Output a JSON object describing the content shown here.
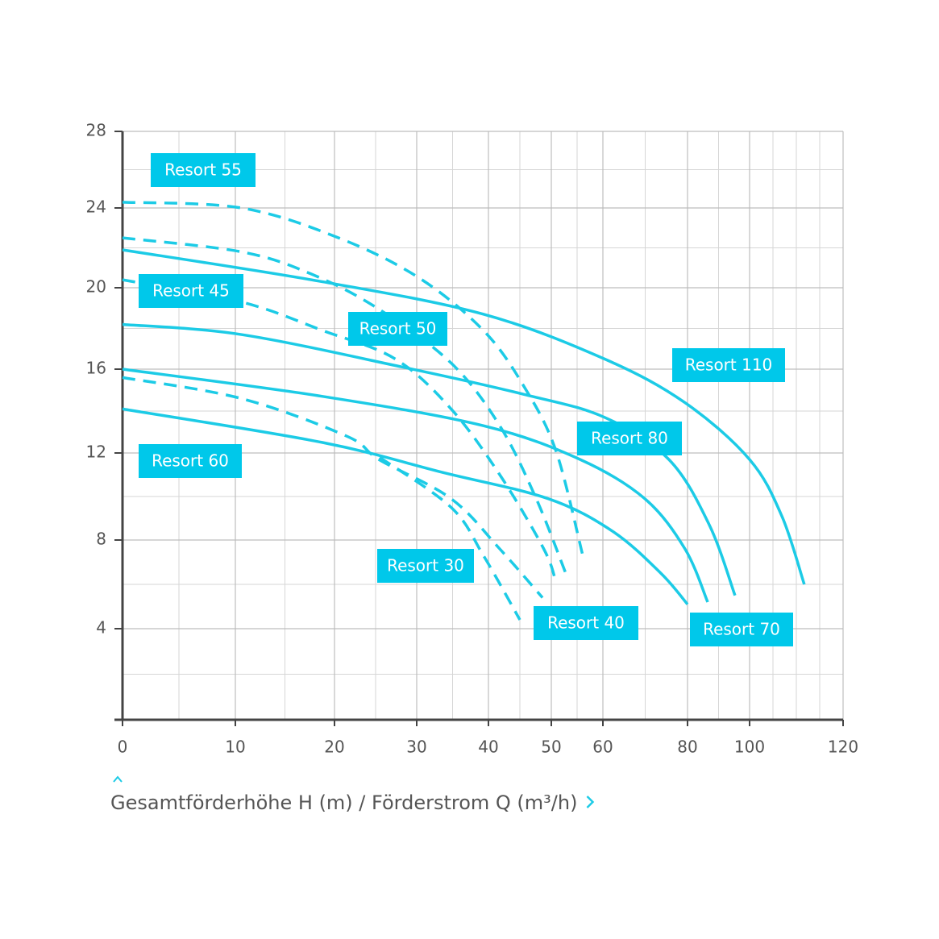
{
  "chart_data": {
    "type": "line",
    "x_axis_label": "Gesamtförderhöhe H (m) / Förderstrom Q (m³/h)",
    "xlim": [
      0,
      120
    ],
    "xticks": [
      0,
      10,
      20,
      30,
      40,
      50,
      60,
      80,
      100,
      120
    ],
    "xminor": [
      5,
      15,
      25,
      35,
      45,
      55,
      70,
      90,
      105,
      110,
      115
    ],
    "ylim": [
      0,
      28
    ],
    "yticks": [
      4,
      8,
      12,
      16,
      20,
      24,
      28
    ],
    "yminor": [
      2,
      6,
      10,
      14,
      18,
      22,
      26
    ],
    "grid": true,
    "series": [
      {
        "name": "Resort 55",
        "color": "#1ccbe6",
        "dashed": true,
        "x": [
          0,
          10.6,
          20.5,
          30.3,
          39.3,
          45.6,
          50.9,
          56.1
        ],
        "values": [
          24.3,
          24,
          22.5,
          20.5,
          17.9,
          15.2,
          12.1,
          7.3
        ]
      },
      {
        "name": "Resort 50",
        "color": "#1ccbe6",
        "dashed": true,
        "x": [
          0,
          10.6,
          17.6,
          25.2,
          34.8,
          41.8,
          47.6,
          52.8
        ],
        "values": [
          22.5,
          21.8,
          20.7,
          19.0,
          16.3,
          13.3,
          9.9,
          6.5
        ]
      },
      {
        "name": "Resort 110",
        "color": "#1ccbe6",
        "dashed": false,
        "x": [
          0,
          18.8,
          39.3,
          60.4,
          79.4,
          100,
          106.9,
          111.7
        ],
        "values": [
          21.9,
          20.3,
          18.7,
          16.5,
          14.4,
          11.7,
          9.1,
          6.0
        ]
      },
      {
        "name": "Resort 45",
        "color": "#1ccbe6",
        "dashed": true,
        "x": [
          0,
          10.6,
          18.8,
          27.4,
          34.8,
          41.8,
          48.8,
          50.9
        ],
        "values": [
          20.4,
          19.3,
          17.9,
          16.5,
          14.1,
          11.0,
          7.6,
          6.1
        ]
      },
      {
        "name": "Resort 80",
        "color": "#1ccbe6",
        "dashed": false,
        "x": [
          0,
          10.6,
          28.3,
          45.6,
          60.4,
          75.6,
          87.0,
          95.3
        ],
        "values": [
          18.2,
          17.7,
          16.1,
          14.8,
          13.7,
          11.7,
          8.7,
          5.5
        ]
      },
      {
        "name": "Resort 70",
        "color": "#1ccbe6",
        "dashed": false,
        "x": [
          0,
          18.8,
          39.3,
          55.6,
          69.9,
          79.4,
          86.5
        ],
        "values": [
          16,
          14.7,
          13.3,
          11.7,
          9.9,
          7.6,
          5.2
        ]
      },
      {
        "name": "Resort 40",
        "color": "#1ccbe6",
        "dashed": true,
        "x": [
          0,
          10.6,
          21.5,
          25.4,
          34.8,
          41.8,
          48.6
        ],
        "values": [
          15.6,
          14.6,
          12.8,
          11.7,
          9.9,
          7.6,
          5.4
        ]
      },
      {
        "name": "Resort 60",
        "color": "#1ccbe6",
        "dashed": false,
        "x": [
          0,
          18.8,
          33.7,
          49.5,
          62.3,
          73.7,
          80
        ],
        "values": [
          14.1,
          12.5,
          11.1,
          9.9,
          8.4,
          6.5,
          5.1
        ]
      },
      {
        "name": "Resort 30",
        "color": "#1ccbe6",
        "dashed": true,
        "x": [
          25.5,
          34.8,
          39.3,
          45.0
        ],
        "values": [
          11.8,
          9.5,
          7.3,
          4.4
        ]
      }
    ]
  }
}
